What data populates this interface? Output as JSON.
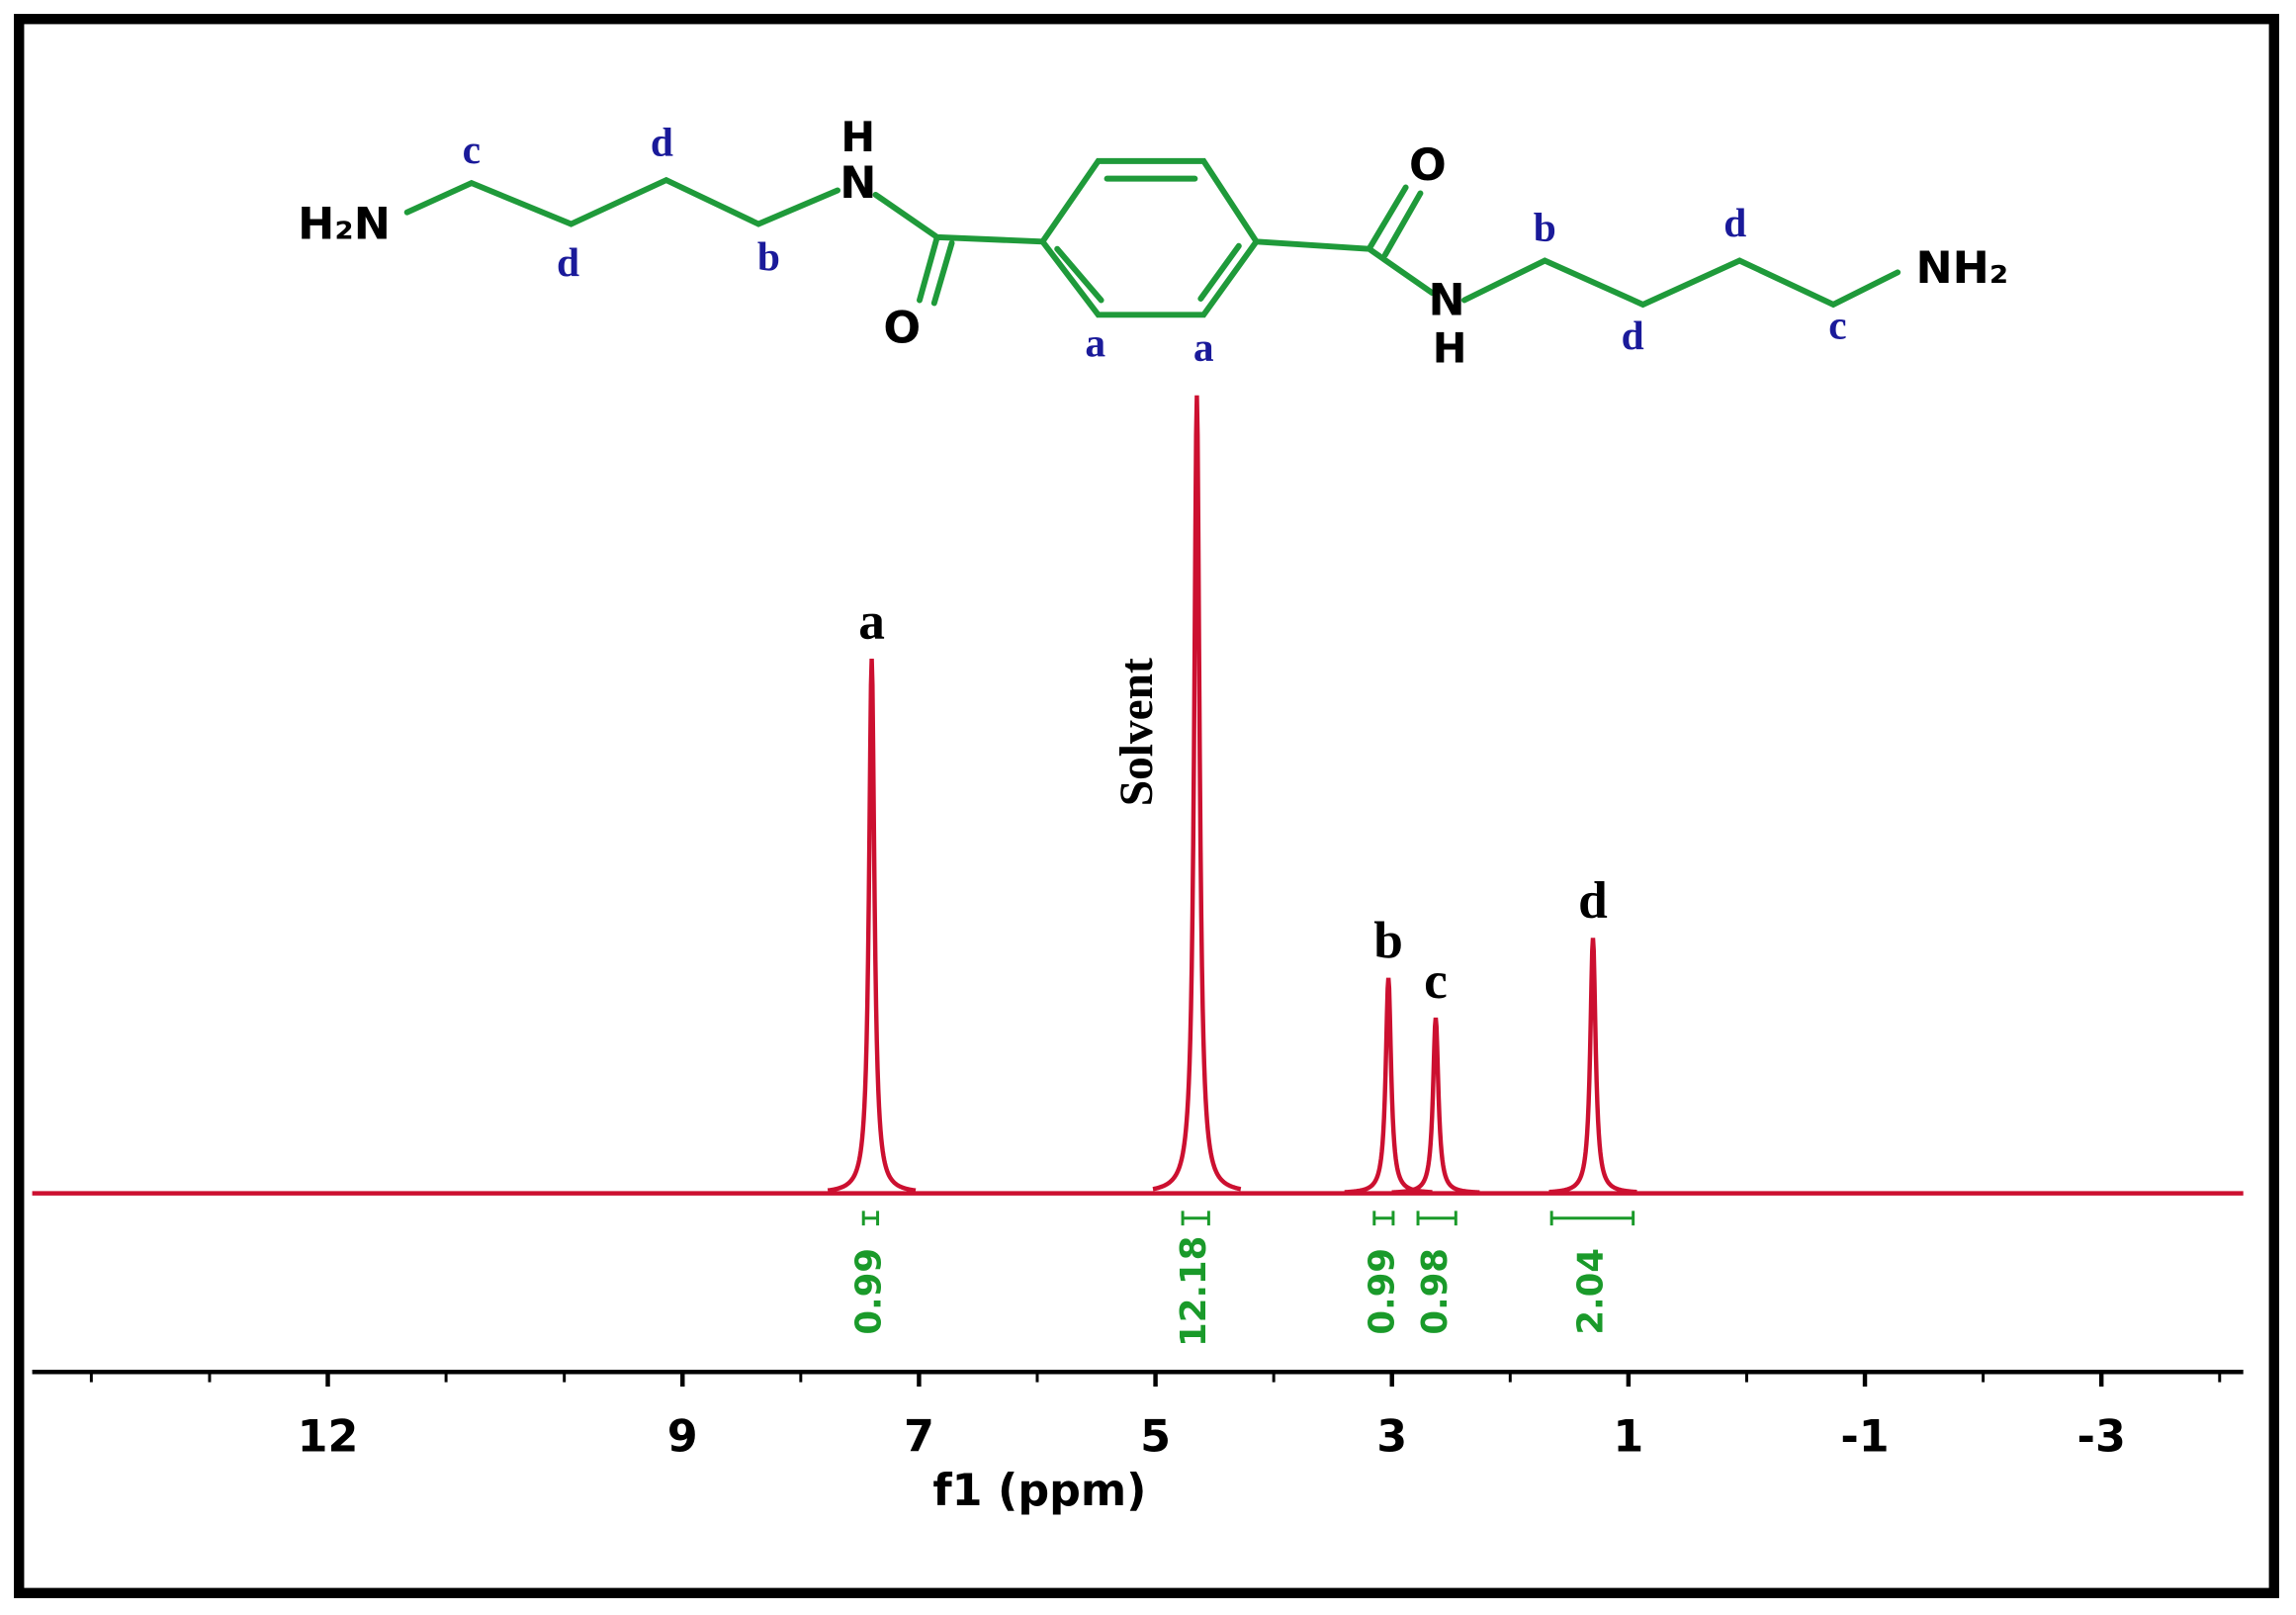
{
  "chart_data": {
    "type": "nmr",
    "x_label": "f1 (ppm)",
    "xlim": [
      14.5,
      -4.2
    ],
    "xticks": [
      12,
      9,
      7,
      5,
      3,
      1,
      -1,
      -3
    ],
    "xticks_minor": [
      14,
      13,
      11,
      10,
      8,
      6,
      4,
      2,
      0,
      -2,
      -4
    ],
    "ylim": [
      0,
      100
    ],
    "color": "#cc1030",
    "x": [
      7.4,
      4.65,
      3.03,
      2.63,
      1.3
    ],
    "values": [
      67,
      100,
      27,
      22,
      32
    ],
    "peak_labels": [
      "a",
      "Solvent",
      "b",
      "c",
      "d"
    ],
    "integrals": [
      0.99,
      12.18,
      0.99,
      0.98,
      2.04
    ],
    "integral_ranges": [
      [
        7.47,
        7.35
      ],
      [
        4.77,
        4.55
      ],
      [
        3.15,
        2.99
      ],
      [
        2.78,
        2.46
      ],
      [
        1.65,
        0.96
      ]
    ],
    "integral_color": "#1a9a2a"
  },
  "structure": {
    "atoms": [
      "H₂N",
      "H",
      "N",
      "O",
      "O",
      "N",
      "H",
      "NH₂"
    ],
    "labels": [
      "c",
      "d",
      "d",
      "b",
      "a",
      "a",
      "b",
      "d",
      "d",
      "c"
    ]
  }
}
